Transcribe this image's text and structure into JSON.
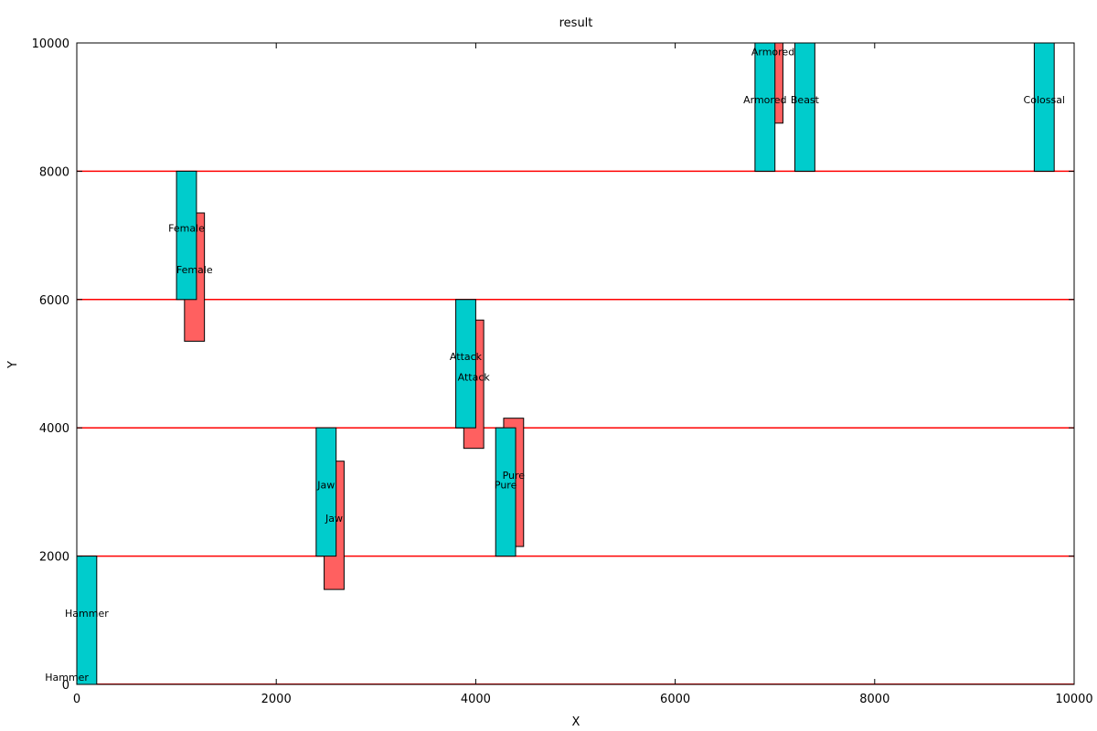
{
  "chart_data": {
    "type": "bar",
    "title": "result",
    "xlabel": "X",
    "ylabel": "Y",
    "xlim": [
      0,
      10000
    ],
    "ylim": [
      0,
      10000
    ],
    "xticks": [
      0,
      2000,
      4000,
      6000,
      8000,
      10000
    ],
    "yticks": [
      0,
      2000,
      4000,
      6000,
      8000,
      10000
    ],
    "hlines": [
      2000,
      4000,
      6000,
      8000
    ],
    "colors": {
      "cyan": "#00cccc",
      "red": "#ff6060",
      "hline": "#ff0000"
    },
    "series": [
      {
        "color": "cyan",
        "bars": [
          {
            "label": "Hammer",
            "x0": 0,
            "x1": 200,
            "y0": 0,
            "y1": 2000
          },
          {
            "label": "Female",
            "x0": 1000,
            "x1": 1200,
            "y0": 6000,
            "y1": 8000
          },
          {
            "label": "Jaw",
            "x0": 2400,
            "x1": 2600,
            "y0": 2000,
            "y1": 4000
          },
          {
            "label": "Attack",
            "x0": 3800,
            "x1": 4000,
            "y0": 4000,
            "y1": 6000
          },
          {
            "label": "Pure",
            "x0": 4200,
            "x1": 4400,
            "y0": 2000,
            "y1": 4000
          },
          {
            "label": "Armored",
            "x0": 6800,
            "x1": 7000,
            "y0": 8000,
            "y1": 10000
          },
          {
            "label": "Beast",
            "x0": 7200,
            "x1": 7400,
            "y0": 8000,
            "y1": 10000
          },
          {
            "label": "Colossal",
            "x0": 9600,
            "x1": 9800,
            "y0": 8000,
            "y1": 10000
          }
        ]
      },
      {
        "color": "red",
        "bars": [
          {
            "label": "Hammer",
            "x0": -200,
            "x1": 0,
            "y0": 0,
            "y1": 0
          },
          {
            "label": "Female",
            "x0": 1080,
            "x1": 1280,
            "y0": 5350,
            "y1": 7350
          },
          {
            "label": "Jaw",
            "x0": 2480,
            "x1": 2680,
            "y0": 1480,
            "y1": 3480
          },
          {
            "label": "Attack",
            "x0": 3880,
            "x1": 4080,
            "y0": 3680,
            "y1": 5680
          },
          {
            "label": "Pure",
            "x0": 4280,
            "x1": 4480,
            "y0": 2150,
            "y1": 4150
          },
          {
            "label": "Armored",
            "x0": 6880,
            "x1": 7080,
            "y0": 8750,
            "y1": 10750
          }
        ]
      }
    ]
  }
}
